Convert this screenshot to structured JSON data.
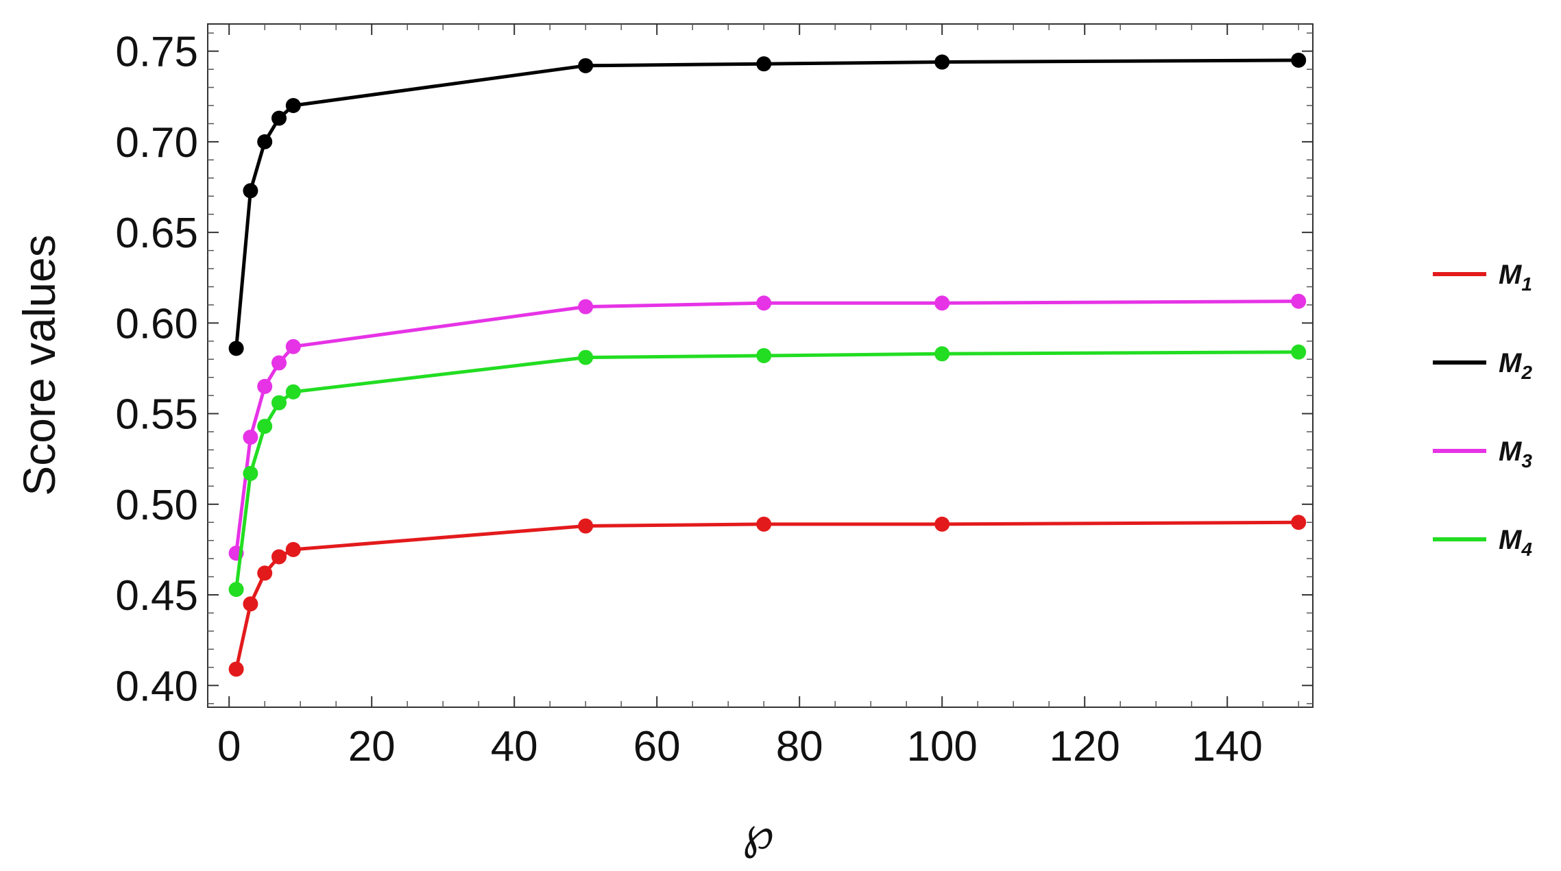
{
  "chart_data": {
    "type": "line",
    "xlabel": "℘",
    "ylabel": "Score values",
    "xlim": [
      -3,
      152
    ],
    "ylim": [
      0.388,
      0.765
    ],
    "x_ticks": [
      0,
      20,
      40,
      60,
      80,
      100,
      120,
      140
    ],
    "x_tick_labels": [
      "0",
      "20",
      "40",
      "60",
      "80",
      "100",
      "120",
      "140"
    ],
    "y_ticks": [
      0.4,
      0.45,
      0.5,
      0.55,
      0.6,
      0.65,
      0.7,
      0.75
    ],
    "y_tick_labels": [
      "0.40",
      "0.45",
      "0.50",
      "0.55",
      "0.60",
      "0.65",
      "0.70",
      "0.75"
    ],
    "grid": false,
    "frame": true,
    "legend_position": "right",
    "x": [
      1,
      3,
      5,
      7,
      9,
      50,
      75,
      100,
      150
    ],
    "series": [
      {
        "name": "M",
        "name_sub": "1",
        "color": "#e31a1c",
        "values": [
          0.409,
          0.445,
          0.462,
          0.471,
          0.475,
          0.488,
          0.489,
          0.489,
          0.49
        ]
      },
      {
        "name": "M",
        "name_sub": "2",
        "color": "#000000",
        "values": [
          0.586,
          0.673,
          0.7,
          0.713,
          0.72,
          0.742,
          0.743,
          0.744,
          0.745
        ]
      },
      {
        "name": "M",
        "name_sub": "3",
        "color": "#e633e6",
        "values": [
          0.473,
          0.537,
          0.565,
          0.578,
          0.587,
          0.609,
          0.611,
          0.611,
          0.612
        ]
      },
      {
        "name": "M",
        "name_sub": "4",
        "color": "#22dd22",
        "values": [
          0.453,
          0.517,
          0.543,
          0.556,
          0.562,
          0.581,
          0.582,
          0.583,
          0.584
        ]
      }
    ]
  }
}
